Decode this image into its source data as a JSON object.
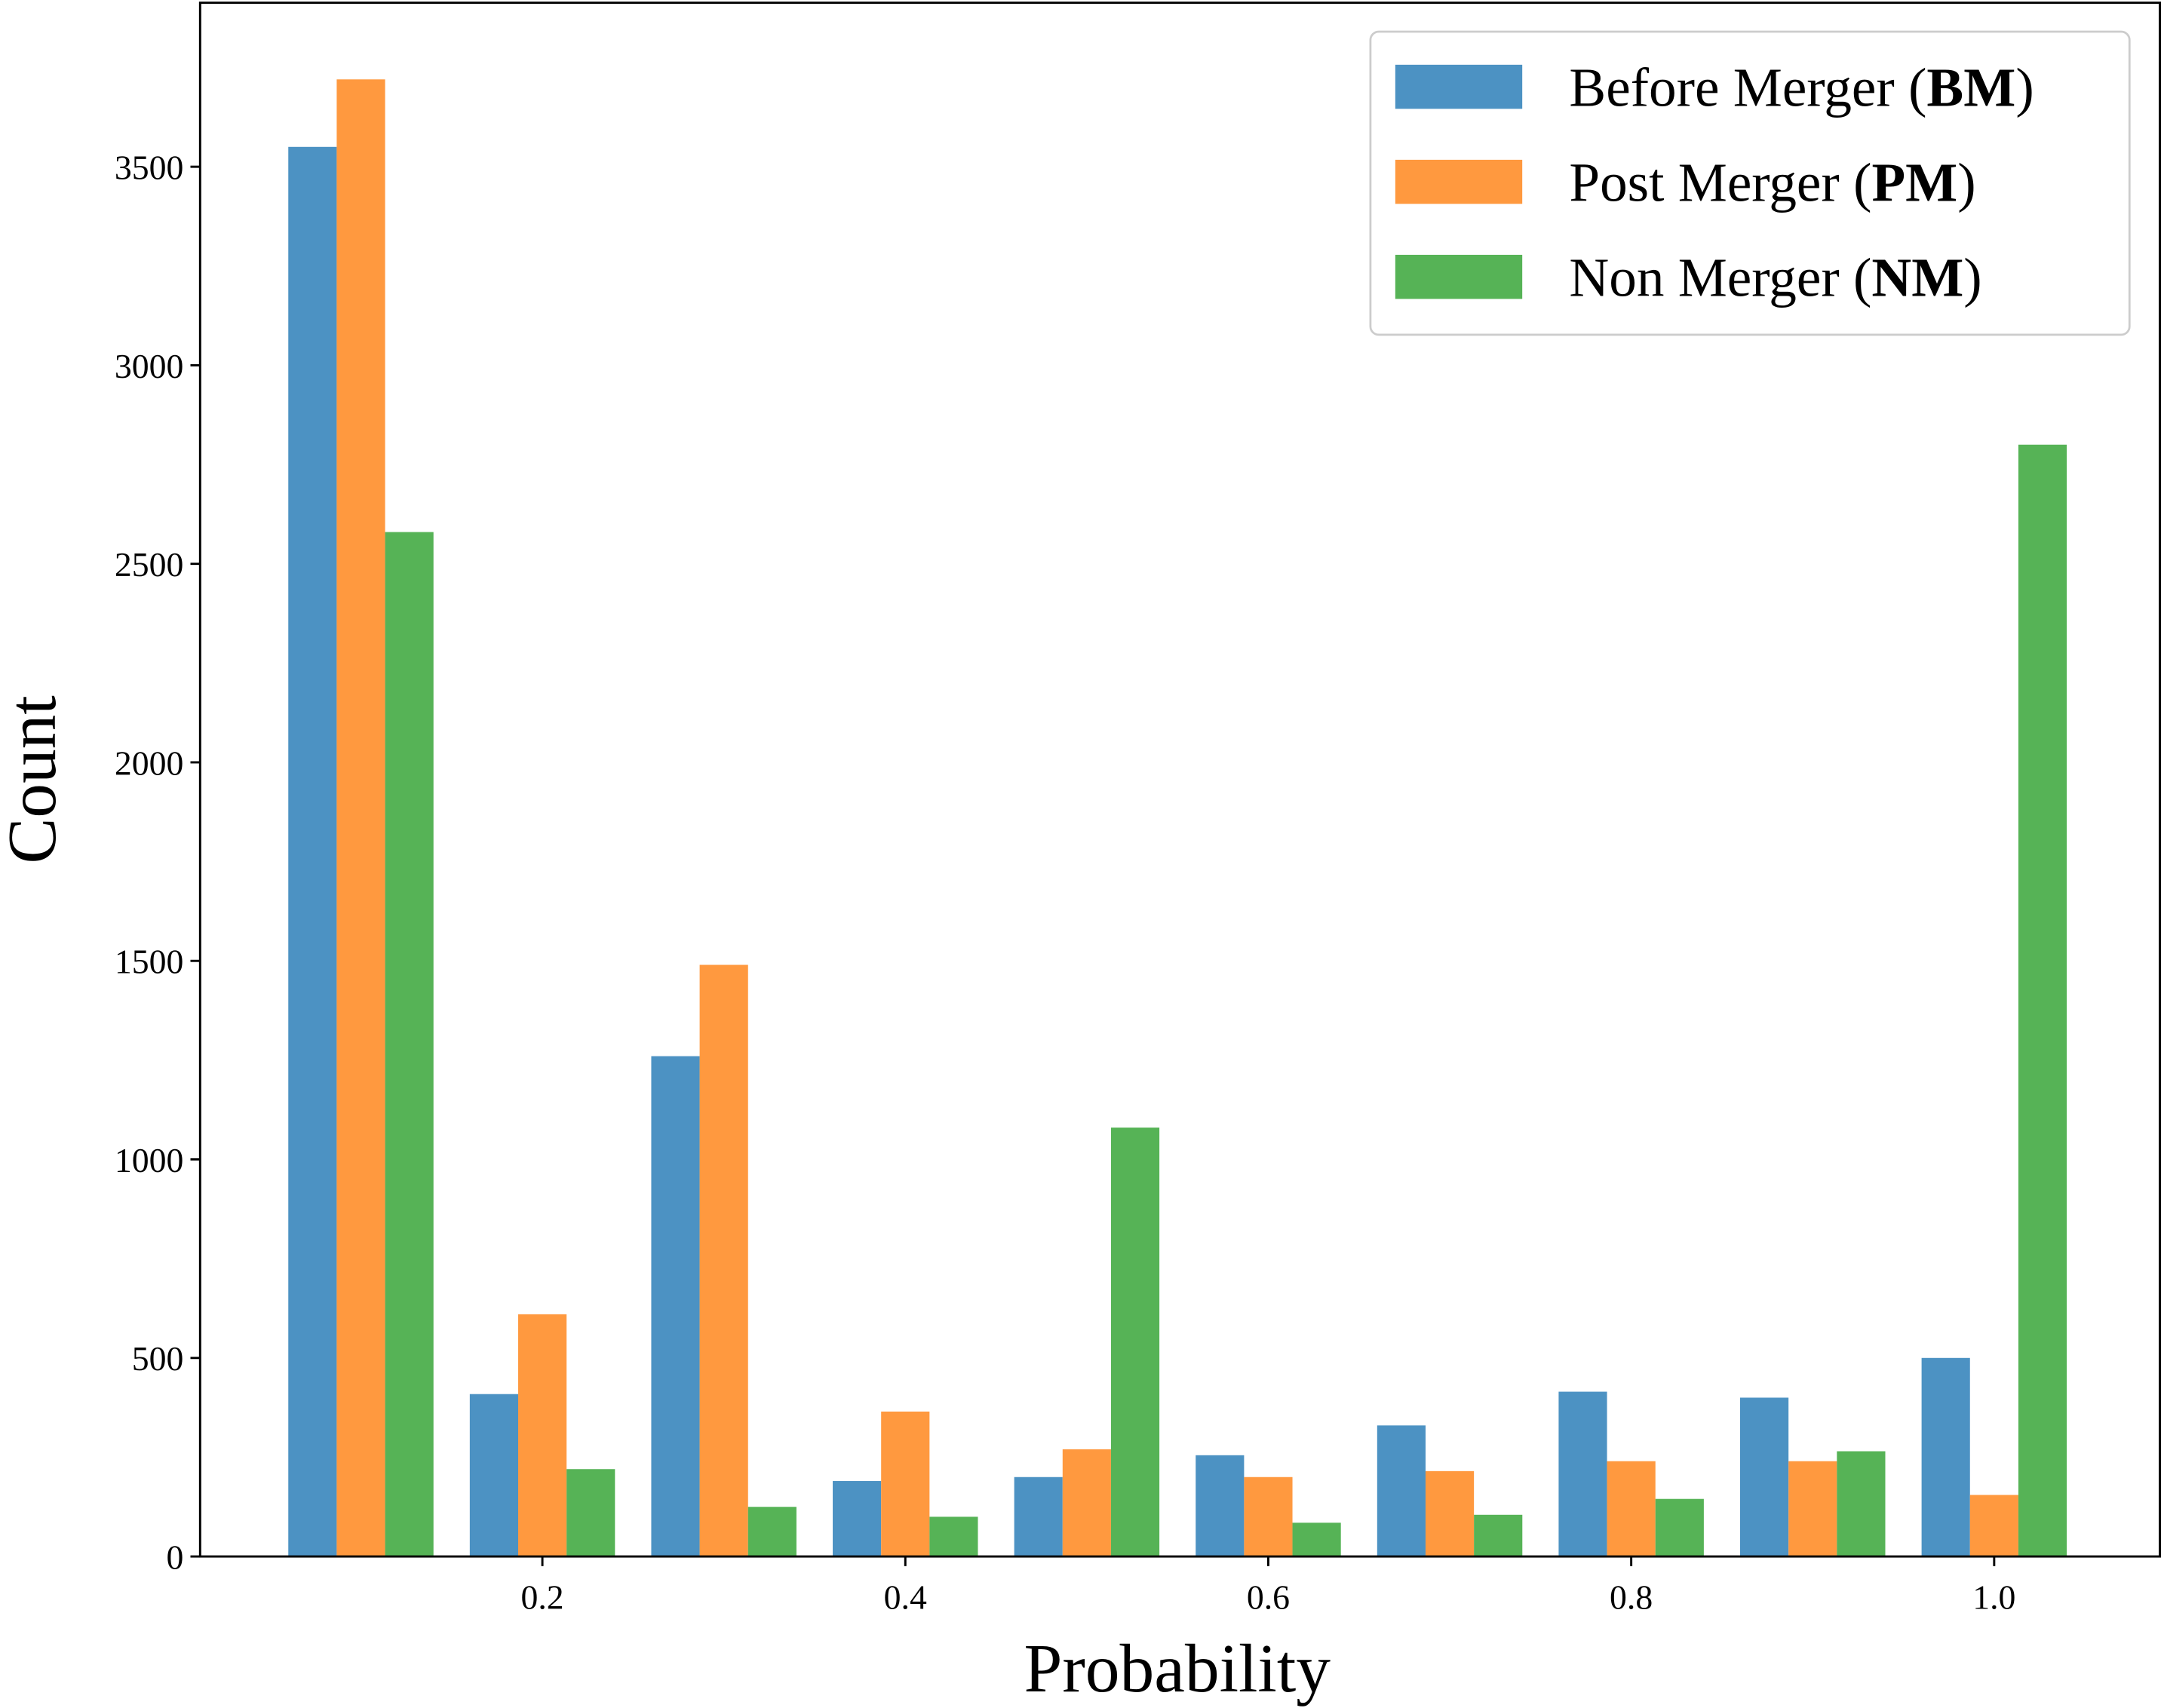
{
  "chart_data": {
    "type": "bar",
    "x": [
      0.1,
      0.2,
      0.3,
      0.4,
      0.5,
      0.6,
      0.7,
      0.8,
      0.9,
      1.0
    ],
    "series": [
      {
        "name": "Before Merger (BM)",
        "color": "#4c92c3",
        "values": [
          3550,
          409,
          1260,
          190,
          200,
          255,
          330,
          415,
          400,
          500
        ]
      },
      {
        "name": "Post Merger (PM)",
        "color": "#ff993f",
        "values": [
          3720,
          610,
          1490,
          365,
          270,
          200,
          215,
          240,
          240,
          155
        ]
      },
      {
        "name": "Non Merger (NM)",
        "color": "#56b356",
        "values": [
          2580,
          220,
          125,
          100,
          1080,
          85,
          105,
          145,
          265,
          2800
        ]
      }
    ],
    "xlabel": "Probability",
    "ylabel": "Count",
    "xlim": [
      0.0114,
      1.0913
    ],
    "xticks": [
      0.2,
      0.4,
      0.6,
      0.8,
      {
        "value": 1,
        "label": "1.0"
      }
    ],
    "ylim": [
      0,
      3913
    ],
    "yticks": [
      0,
      500,
      1000,
      1500,
      2000,
      2500,
      3000,
      3500
    ],
    "legend": "upper right",
    "grid": false
  }
}
